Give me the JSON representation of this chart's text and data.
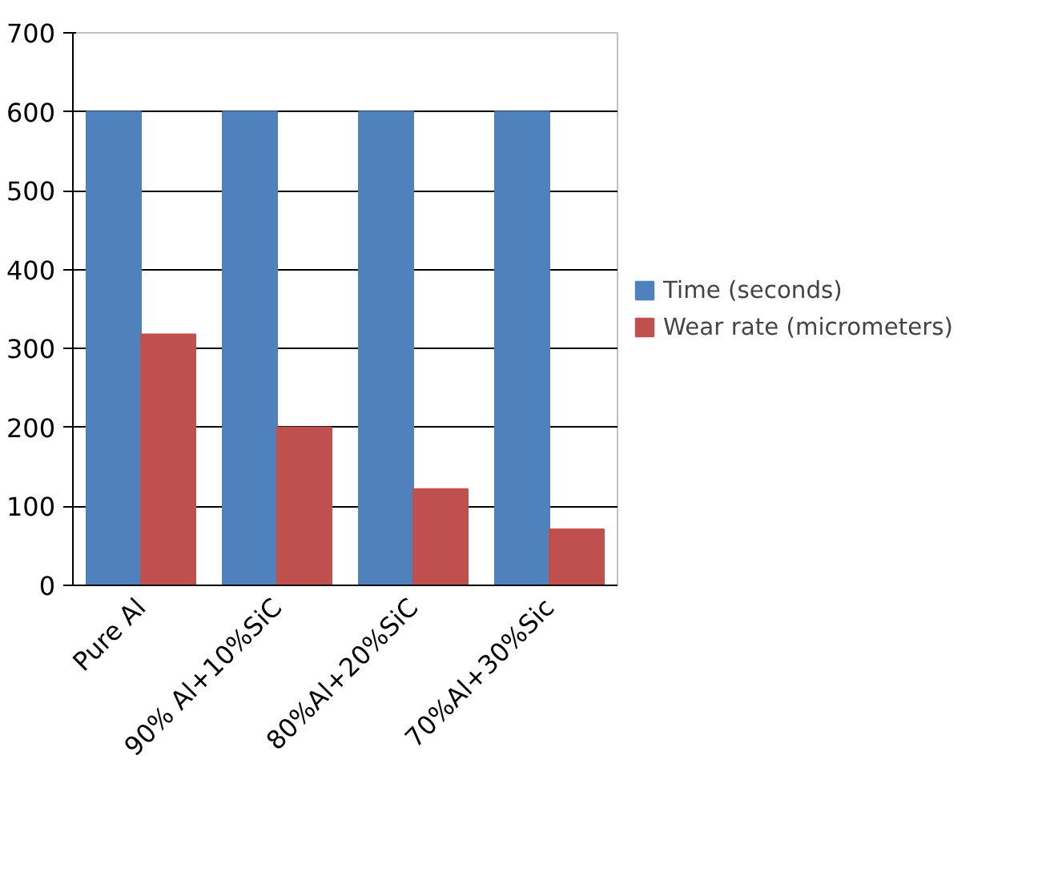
{
  "chart_data": {
    "type": "bar",
    "categories": [
      "Pure Al",
      "90% Al+10%SiC",
      "80%Al+20%SiC",
      "70%Al+30%Sic"
    ],
    "series": [
      {
        "name": "Time (seconds)",
        "color": "#4f81bd",
        "values": [
          600,
          600,
          600,
          600
        ]
      },
      {
        "name": "Wear rate (micrometers)",
        "color": "#c0504d",
        "values": [
          318,
          200,
          122,
          71
        ]
      }
    ],
    "ylim": [
      0,
      700
    ],
    "yticks": [
      0,
      100,
      200,
      300,
      400,
      500,
      600,
      700
    ],
    "grid": "y",
    "legend": "right"
  }
}
